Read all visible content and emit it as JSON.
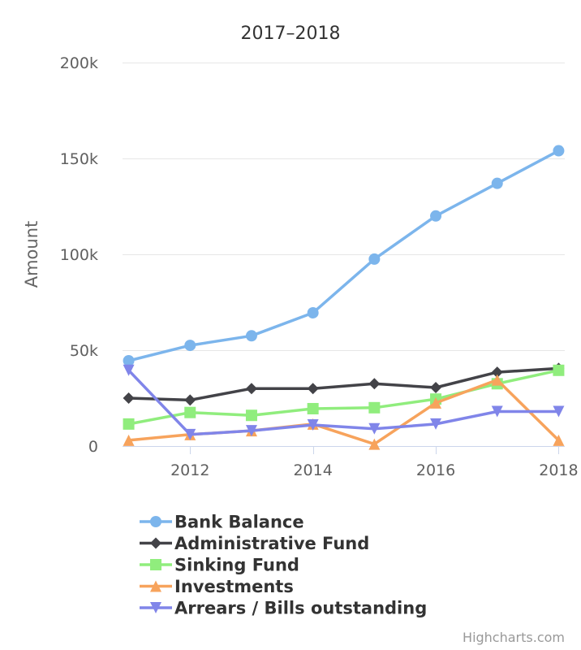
{
  "chart_data": {
    "type": "line",
    "title": "2017–2018",
    "ylabel": "Amount",
    "xlabel": "",
    "x": [
      2011,
      2012,
      2013,
      2014,
      2015,
      2016,
      2017,
      2018
    ],
    "x_ticks": [
      2012,
      2014,
      2016,
      2018
    ],
    "x_tick_labels": [
      "2012",
      "2014",
      "2016",
      "2018"
    ],
    "xlim": [
      2010.9,
      2018.1
    ],
    "ylim": [
      0,
      200000
    ],
    "y_ticks": [
      0,
      50000,
      100000,
      150000,
      200000
    ],
    "y_tick_labels": [
      "0",
      "50k",
      "100k",
      "150k",
      "200k"
    ],
    "grid": true,
    "legend_position": "bottom",
    "series": [
      {
        "name": "Bank Balance",
        "color": "#7cb5ec",
        "marker": "circle",
        "values": [
          44500,
          52500,
          57500,
          69500,
          97500,
          120000,
          137000,
          154000
        ]
      },
      {
        "name": "Administrative Fund",
        "color": "#434348",
        "marker": "diamond",
        "values": [
          25000,
          24000,
          30000,
          30000,
          32500,
          30500,
          38500,
          40500
        ]
      },
      {
        "name": "Sinking Fund",
        "color": "#90ed7d",
        "marker": "square",
        "values": [
          11500,
          17500,
          16000,
          19500,
          20000,
          24500,
          32500,
          39500
        ]
      },
      {
        "name": "Investments",
        "color": "#f7a35c",
        "marker": "triangle",
        "values": [
          3000,
          6000,
          8000,
          11500,
          1000,
          22500,
          34500,
          3000
        ]
      },
      {
        "name": "Arrears / Bills outstanding",
        "color": "#8085e9",
        "marker": "triangle-down",
        "values": [
          39500,
          6000,
          8000,
          11000,
          9000,
          11500,
          18000,
          18000
        ]
      }
    ]
  },
  "credits": "Highcharts.com"
}
